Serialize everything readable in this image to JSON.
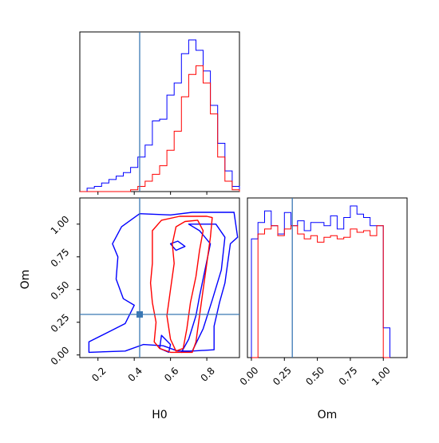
{
  "colors": {
    "blue_series": "#0000ff",
    "red_series": "#ff0000",
    "truth": "#3a78b4"
  },
  "chart_data": {
    "type": "corner",
    "parameters": [
      "H0",
      "Om"
    ],
    "truth": {
      "H0": 0.43,
      "Om": 0.31
    },
    "panels": [
      {
        "id": "hist-H0",
        "type": "histogram",
        "xlim": [
          0.1,
          0.98
        ],
        "bin_edges": [
          0.1,
          0.14,
          0.18,
          0.22,
          0.26,
          0.3,
          0.34,
          0.38,
          0.42,
          0.46,
          0.5,
          0.54,
          0.58,
          0.62,
          0.66,
          0.7,
          0.74,
          0.78,
          0.82,
          0.86,
          0.9,
          0.94,
          0.98
        ],
        "series": [
          {
            "color": "blue",
            "counts": [
              0,
              2,
              3,
              5,
              7,
              9,
              11,
              14,
              20,
              27,
              41,
              42,
              56,
              63,
              80,
              88,
              82,
              70,
              50,
              28,
              12,
              3
            ]
          },
          {
            "color": "red",
            "counts": [
              0,
              0,
              0,
              0,
              0,
              0,
              0,
              1,
              3,
              6,
              10,
              15,
              24,
              35,
              55,
              68,
              73,
              63,
              45,
              20,
              6,
              1
            ]
          }
        ]
      },
      {
        "id": "hist-Om",
        "type": "histogram",
        "xlim": [
          -0.03,
          1.18
        ],
        "bin_edges": [
          0.0,
          0.05,
          0.1,
          0.15,
          0.2,
          0.25,
          0.3,
          0.35,
          0.4,
          0.45,
          0.5,
          0.55,
          0.6,
          0.65,
          0.7,
          0.75,
          0.8,
          0.85,
          0.9,
          0.95,
          1.0,
          1.05
        ],
        "series": [
          {
            "color": "blue",
            "counts": [
              72,
              82,
              89,
              80,
              75,
              88,
              80,
              83,
              77,
              82,
              82,
              80,
              86,
              78,
              85,
              92,
              87,
              85,
              80,
              80,
              18,
              0
            ]
          },
          {
            "color": "red",
            "counts": [
              0,
              75,
              78,
              80,
              74,
              78,
              80,
              75,
              72,
              74,
              70,
              73,
              74,
              72,
              73,
              78,
              76,
              77,
              74,
              80,
              0,
              0
            ]
          }
        ]
      },
      {
        "id": "scatter-H0-Om",
        "type": "contour",
        "xlim": [
          0.1,
          0.98
        ],
        "ylim": [
          -0.02,
          1.2
        ],
        "series": [
          {
            "color": "blue",
            "contours": [
              [
                [
                  0.43,
                  1.08
                ],
                [
                  0.6,
                  1.07
                ],
                [
                  0.72,
                  1.09
                ],
                [
                  0.95,
                  1.09
                ],
                [
                  0.97,
                  0.9
                ],
                [
                  0.93,
                  0.85
                ],
                [
                  0.9,
                  0.55
                ],
                [
                  0.87,
                  0.4
                ],
                [
                  0.84,
                  0.22
                ],
                [
                  0.84,
                  0.04
                ],
                [
                  0.72,
                  0.03
                ],
                [
                  0.64,
                  0.03
                ],
                [
                  0.56,
                  0.07
                ],
                [
                  0.45,
                  0.08
                ],
                [
                  0.35,
                  0.03
                ],
                [
                  0.15,
                  0.02
                ],
                [
                  0.15,
                  0.1
                ],
                [
                  0.25,
                  0.17
                ],
                [
                  0.35,
                  0.24
                ],
                [
                  0.4,
                  0.38
                ],
                [
                  0.34,
                  0.43
                ],
                [
                  0.3,
                  0.58
                ],
                [
                  0.31,
                  0.75
                ],
                [
                  0.28,
                  0.85
                ],
                [
                  0.33,
                  0.98
                ],
                [
                  0.43,
                  1.08
                ]
              ],
              [
                [
                  0.6,
                  0.85
                ],
                [
                  0.63,
                  0.8
                ],
                [
                  0.68,
                  0.83
                ],
                [
                  0.64,
                  0.87
                ],
                [
                  0.6,
                  0.85
                ]
              ],
              [
                [
                  0.7,
                  1.0
                ],
                [
                  0.76,
                  0.95
                ],
                [
                  0.82,
                  0.85
                ],
                [
                  0.79,
                  0.65
                ],
                [
                  0.76,
                  0.45
                ],
                [
                  0.74,
                  0.3
                ],
                [
                  0.7,
                  0.12
                ],
                [
                  0.66,
                  0.02
                ],
                [
                  0.72,
                  0.03
                ],
                [
                  0.78,
                  0.2
                ],
                [
                  0.83,
                  0.42
                ],
                [
                  0.88,
                  0.65
                ],
                [
                  0.9,
                  0.9
                ],
                [
                  0.85,
                  1.0
                ],
                [
                  0.7,
                  1.0
                ]
              ],
              [
                [
                  0.55,
                  0.15
                ],
                [
                  0.6,
                  0.08
                ],
                [
                  0.59,
                  0.02
                ],
                [
                  0.54,
                  0.05
                ],
                [
                  0.55,
                  0.15
                ]
              ]
            ]
          },
          {
            "color": "red",
            "contours": [
              [
                [
                  0.5,
                  0.95
                ],
                [
                  0.55,
                  1.03
                ],
                [
                  0.65,
                  1.06
                ],
                [
                  0.8,
                  1.06
                ],
                [
                  0.83,
                  1.05
                ],
                [
                  0.82,
                  0.9
                ],
                [
                  0.8,
                  0.7
                ],
                [
                  0.78,
                  0.5
                ],
                [
                  0.76,
                  0.3
                ],
                [
                  0.74,
                  0.1
                ],
                [
                  0.72,
                  0.02
                ],
                [
                  0.6,
                  0.02
                ],
                [
                  0.54,
                  0.05
                ],
                [
                  0.51,
                  0.1
                ],
                [
                  0.52,
                  0.25
                ],
                [
                  0.5,
                  0.4
                ],
                [
                  0.49,
                  0.55
                ],
                [
                  0.5,
                  0.7
                ],
                [
                  0.5,
                  0.85
                ],
                [
                  0.5,
                  0.95
                ]
              ],
              [
                [
                  0.63,
                  0.98
                ],
                [
                  0.68,
                  1.02
                ],
                [
                  0.75,
                  1.03
                ],
                [
                  0.78,
                  0.95
                ],
                [
                  0.76,
                  0.8
                ],
                [
                  0.74,
                  0.6
                ],
                [
                  0.71,
                  0.4
                ],
                [
                  0.69,
                  0.2
                ],
                [
                  0.67,
                  0.05
                ],
                [
                  0.63,
                  0.03
                ],
                [
                  0.6,
                  0.12
                ],
                [
                  0.58,
                  0.3
                ],
                [
                  0.6,
                  0.5
                ],
                [
                  0.62,
                  0.7
                ],
                [
                  0.61,
                  0.85
                ],
                [
                  0.63,
                  0.98
                ]
              ]
            ]
          }
        ]
      }
    ],
    "axes": {
      "H0": {
        "label": "H0",
        "ticks": [
          0.2,
          0.4,
          0.6,
          0.8
        ],
        "tick_labels": [
          "0.2",
          "0.4",
          "0.6",
          "0.8"
        ]
      },
      "Om": {
        "label": "Om",
        "ticks": [
          0.0,
          0.25,
          0.5,
          0.75,
          1.0
        ],
        "tick_labels": [
          "0.00",
          "0.25",
          "0.50",
          "0.75",
          "1.00"
        ]
      }
    }
  }
}
